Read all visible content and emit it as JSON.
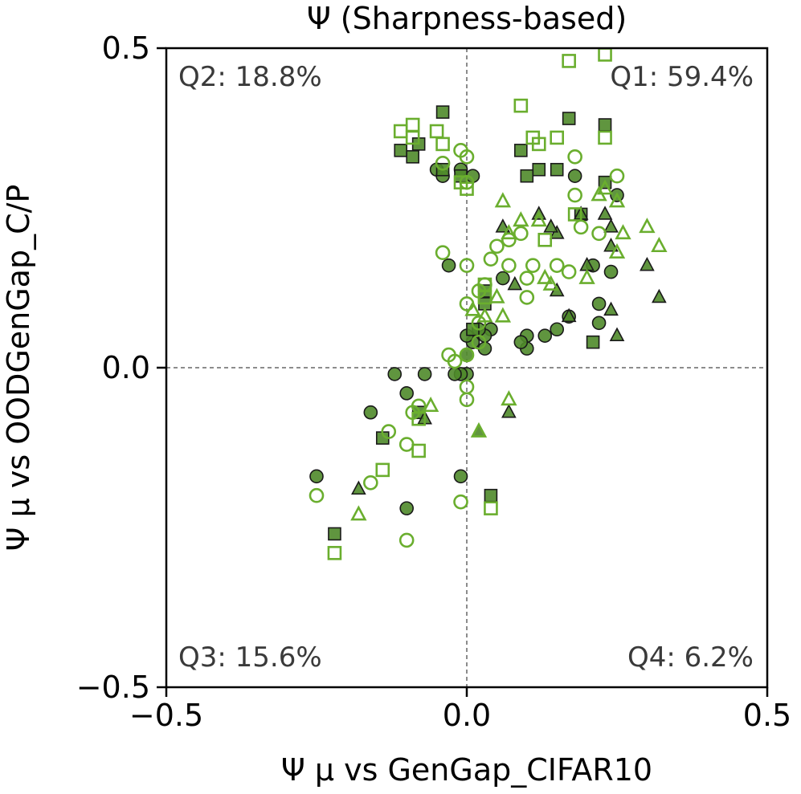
{
  "chart_data": {
    "type": "scatter",
    "title": "Ψ (Sharpness-based)",
    "xlabel": "Ψ μ vs GenGap_CIFAR10",
    "ylabel": "Ψ μ vs OODGenGap_C/P",
    "xlim": [
      -0.5,
      0.5
    ],
    "ylim": [
      -0.5,
      0.5
    ],
    "xticks": [
      "−0.5",
      "0.0",
      "0.5"
    ],
    "yticks": [
      "0.5",
      "0.0",
      "−0.5"
    ],
    "xtick_values": [
      -0.5,
      0.0,
      0.5
    ],
    "ytick_values": [
      0.5,
      0.0,
      -0.5
    ],
    "grid": false,
    "reference_lines": {
      "x": 0.0,
      "y": 0.0
    },
    "quadrant_labels": {
      "q1": "Q1: 59.4%",
      "q2": "Q2: 18.8%",
      "q3": "Q3: 15.6%",
      "q4": "Q4: 6.2%"
    },
    "colors": {
      "marker_dark_fill": "#4f8a2a",
      "marker_light_edge": "#6aae2e",
      "marker_dark_edge": "#1a1a1a",
      "reference_line": "#666666"
    },
    "series": [
      {
        "name": "filled-circle",
        "marker": "circle",
        "filled": true,
        "points": [
          [
            -0.05,
            0.31
          ],
          [
            -0.04,
            0.3
          ],
          [
            -0.01,
            0.31
          ],
          [
            0.01,
            0.3
          ],
          [
            -0.03,
            0.16
          ],
          [
            0.18,
            0.3
          ],
          [
            0.25,
            0.27
          ],
          [
            0.24,
            0.15
          ],
          [
            0.21,
            0.16
          ],
          [
            0.22,
            0.1
          ],
          [
            0.22,
            0.07
          ],
          [
            0.17,
            0.08
          ],
          [
            0.15,
            0.06
          ],
          [
            0.13,
            0.05
          ],
          [
            0.1,
            0.05
          ],
          [
            0.1,
            0.03
          ],
          [
            0.09,
            0.04
          ],
          [
            0.04,
            0.06
          ],
          [
            0.03,
            0.05
          ],
          [
            0.02,
            0.06
          ],
          [
            0.03,
            0.03
          ],
          [
            0.01,
            0.04
          ],
          [
            0.0,
            0.05
          ],
          [
            0.0,
            0.02
          ],
          [
            0.0,
            -0.01
          ],
          [
            -0.01,
            -0.01
          ],
          [
            -0.02,
            -0.01
          ],
          [
            -0.07,
            -0.01
          ],
          [
            -0.12,
            -0.01
          ],
          [
            -0.1,
            -0.04
          ],
          [
            -0.16,
            -0.07
          ],
          [
            -0.25,
            -0.17
          ],
          [
            -0.1,
            -0.22
          ],
          [
            -0.01,
            -0.17
          ],
          [
            0.06,
            0.14
          ]
        ]
      },
      {
        "name": "filled-square",
        "marker": "square",
        "filled": true,
        "points": [
          [
            -0.04,
            0.4
          ],
          [
            -0.11,
            0.34
          ],
          [
            -0.09,
            0.33
          ],
          [
            -0.08,
            0.35
          ],
          [
            -0.04,
            0.31
          ],
          [
            -0.01,
            0.3
          ],
          [
            0.17,
            0.39
          ],
          [
            0.23,
            0.38
          ],
          [
            0.09,
            0.34
          ],
          [
            0.12,
            0.31
          ],
          [
            0.1,
            0.3
          ],
          [
            0.15,
            0.31
          ],
          [
            0.23,
            0.29
          ],
          [
            0.19,
            0.24
          ],
          [
            0.21,
            0.04
          ],
          [
            0.03,
            0.12
          ],
          [
            0.03,
            0.1
          ],
          [
            0.01,
            0.06
          ],
          [
            -0.08,
            -0.07
          ],
          [
            -0.14,
            -0.11
          ],
          [
            0.04,
            -0.2
          ],
          [
            -0.22,
            -0.26
          ]
        ]
      },
      {
        "name": "filled-triangle",
        "marker": "triangle",
        "filled": true,
        "points": [
          [
            0.06,
            0.22
          ],
          [
            0.12,
            0.24
          ],
          [
            0.15,
            0.21
          ],
          [
            0.14,
            0.22
          ],
          [
            0.19,
            0.24
          ],
          [
            0.23,
            0.24
          ],
          [
            0.24,
            0.22
          ],
          [
            0.24,
            0.19
          ],
          [
            0.2,
            0.16
          ],
          [
            0.15,
            0.12
          ],
          [
            0.17,
            0.08
          ],
          [
            0.24,
            0.09
          ],
          [
            0.25,
            0.05
          ],
          [
            0.3,
            0.16
          ],
          [
            0.32,
            0.11
          ],
          [
            0.08,
            0.13
          ],
          [
            -0.07,
            -0.08
          ],
          [
            0.02,
            -0.1
          ],
          [
            0.07,
            -0.07
          ],
          [
            -0.18,
            -0.19
          ]
        ]
      },
      {
        "name": "open-circle",
        "marker": "circle",
        "filled": false,
        "points": [
          [
            -0.04,
            0.32
          ],
          [
            -0.01,
            0.34
          ],
          [
            0.0,
            0.33
          ],
          [
            0.0,
            0.29
          ],
          [
            0.18,
            0.33
          ],
          [
            0.25,
            0.3
          ],
          [
            0.18,
            0.27
          ],
          [
            0.19,
            0.22
          ],
          [
            0.22,
            0.21
          ],
          [
            0.09,
            0.21
          ],
          [
            0.07,
            0.2
          ],
          [
            0.05,
            0.19
          ],
          [
            -0.04,
            0.18
          ],
          [
            0.04,
            0.17
          ],
          [
            0.07,
            0.16
          ],
          [
            0.0,
            0.16
          ],
          [
            0.11,
            0.16
          ],
          [
            0.15,
            0.16
          ],
          [
            0.17,
            0.15
          ],
          [
            0.1,
            0.14
          ],
          [
            0.03,
            0.13
          ],
          [
            0.02,
            0.12
          ],
          [
            0.1,
            0.11
          ],
          [
            0.0,
            0.1
          ],
          [
            0.02,
            0.07
          ],
          [
            0.02,
            0.04
          ],
          [
            0.0,
            0.02
          ],
          [
            -0.03,
            0.02
          ],
          [
            -0.02,
            0.01
          ],
          [
            0.0,
            -0.03
          ],
          [
            0.0,
            -0.05
          ],
          [
            -0.08,
            -0.06
          ],
          [
            -0.09,
            -0.07
          ],
          [
            -0.13,
            -0.1
          ],
          [
            -0.1,
            -0.12
          ],
          [
            -0.16,
            -0.18
          ],
          [
            -0.25,
            -0.2
          ],
          [
            -0.01,
            -0.21
          ],
          [
            -0.1,
            -0.27
          ]
        ]
      },
      {
        "name": "open-square",
        "marker": "square",
        "filled": false,
        "points": [
          [
            0.17,
            0.48
          ],
          [
            0.23,
            0.49
          ],
          [
            -0.11,
            0.37
          ],
          [
            -0.09,
            0.36
          ],
          [
            -0.09,
            0.38
          ],
          [
            -0.05,
            0.37
          ],
          [
            0.09,
            0.41
          ],
          [
            0.11,
            0.36
          ],
          [
            0.15,
            0.36
          ],
          [
            0.23,
            0.36
          ],
          [
            0.12,
            0.35
          ],
          [
            -0.04,
            0.35
          ],
          [
            -0.01,
            0.29
          ],
          [
            0.0,
            0.28
          ],
          [
            0.13,
            0.2
          ],
          [
            0.18,
            0.24
          ],
          [
            0.03,
            0.11
          ],
          [
            0.03,
            0.13
          ],
          [
            -0.08,
            -0.08
          ],
          [
            -0.14,
            -0.16
          ],
          [
            -0.08,
            -0.13
          ],
          [
            0.04,
            -0.22
          ],
          [
            -0.22,
            -0.29
          ]
        ]
      },
      {
        "name": "open-triangle",
        "marker": "triangle",
        "filled": false,
        "points": [
          [
            0.06,
            0.26
          ],
          [
            0.09,
            0.23
          ],
          [
            0.12,
            0.23
          ],
          [
            0.22,
            0.27
          ],
          [
            0.23,
            0.28
          ],
          [
            0.25,
            0.26
          ],
          [
            0.3,
            0.22
          ],
          [
            0.32,
            0.19
          ],
          [
            0.26,
            0.21
          ],
          [
            0.25,
            0.18
          ],
          [
            0.07,
            0.21
          ],
          [
            0.13,
            0.14
          ],
          [
            0.14,
            0.13
          ],
          [
            0.2,
            0.14
          ],
          [
            0.05,
            0.11
          ],
          [
            0.06,
            0.08
          ],
          [
            0.01,
            0.09
          ],
          [
            0.03,
            0.08
          ],
          [
            0.07,
            -0.05
          ],
          [
            0.02,
            -0.1
          ],
          [
            -0.06,
            -0.06
          ],
          [
            -0.18,
            -0.23
          ]
        ]
      }
    ]
  }
}
